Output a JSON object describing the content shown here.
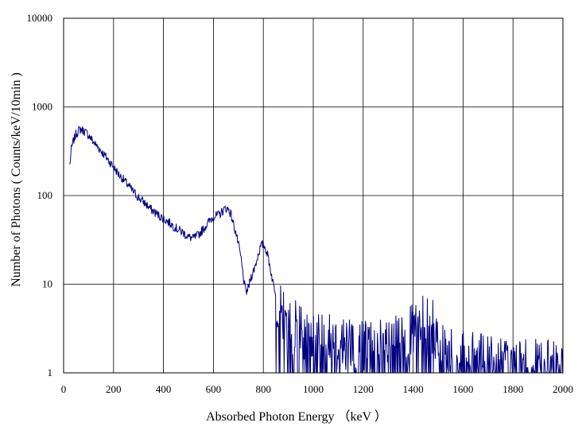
{
  "chart_data": {
    "type": "line",
    "title": "",
    "xlabel": "Absorbed Photon Energy （keV ）",
    "ylabel": "Number  of Photons ( Counts/keV/10min  )",
    "xlim": [
      0,
      2000
    ],
    "ylim": [
      1,
      10000
    ],
    "y_scale": "log",
    "x_ticks": [
      "0",
      "200",
      "400",
      "600",
      "800",
      "1000",
      "1200",
      "1400",
      "1600",
      "1800",
      "2000"
    ],
    "y_ticks": [
      "1",
      "10",
      "100",
      "1000",
      "10000"
    ],
    "grid": true,
    "legend": "none",
    "line_color": "#000080",
    "series": [
      {
        "x": [
          25,
          30,
          40,
          50,
          60,
          70,
          80,
          100,
          120,
          150,
          180,
          200,
          220,
          250,
          280,
          300,
          330,
          350,
          380,
          400,
          430,
          450,
          480,
          500,
          520,
          540,
          560,
          580,
          600,
          620,
          640,
          650,
          660,
          670,
          680,
          690,
          700,
          710,
          720,
          730,
          740,
          750,
          760,
          770,
          780,
          790,
          800,
          810,
          820,
          830,
          840,
          850,
          860,
          870,
          880,
          900,
          950,
          1000,
          1100,
          1200,
          1300,
          1380,
          1420,
          1450,
          1480,
          1500,
          1520,
          1550,
          1600,
          1700,
          1800,
          1900,
          2000
        ],
        "values": [
          220,
          320,
          420,
          500,
          540,
          560,
          540,
          480,
          400,
          320,
          250,
          210,
          175,
          140,
          110,
          95,
          80,
          70,
          60,
          55,
          48,
          43,
          38,
          34,
          33,
          36,
          42,
          50,
          58,
          60,
          68,
          72,
          70,
          62,
          48,
          38,
          28,
          20,
          12,
          8,
          9,
          12,
          14,
          17,
          22,
          27,
          28,
          25,
          20,
          14,
          10,
          8,
          6,
          5,
          4,
          3.5,
          3,
          2.5,
          2.2,
          2,
          2,
          2.6,
          3.2,
          3.8,
          3.2,
          2.5,
          2,
          1.6,
          1.4,
          1.3,
          1.2,
          1.15,
          1.1
        ]
      }
    ]
  }
}
